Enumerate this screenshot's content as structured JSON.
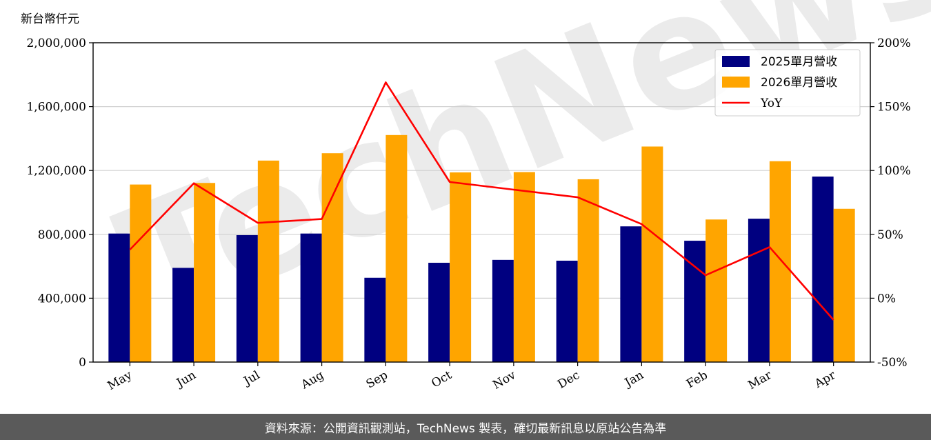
{
  "chart_data": {
    "type": "bar",
    "y_unit_label": "新台幣仟元",
    "categories": [
      "May",
      "Jun",
      "Jul",
      "Aug",
      "Sep",
      "Oct",
      "Nov",
      "Dec",
      "Jan",
      "Feb",
      "Mar",
      "Apr"
    ],
    "series": [
      {
        "name": "2025單月營收",
        "type": "bar",
        "color": "#000080",
        "axis": "left",
        "values": [
          805000,
          590000,
          795000,
          805000,
          528000,
          622000,
          640000,
          635000,
          850000,
          760000,
          898000,
          1162000
        ]
      },
      {
        "name": "2026單月營收",
        "type": "bar",
        "color": "#ffa500",
        "axis": "left",
        "values": [
          1112000,
          1122000,
          1262000,
          1308000,
          1422000,
          1188000,
          1190000,
          1145000,
          1350000,
          893000,
          1258000,
          960000
        ]
      },
      {
        "name": "YoY",
        "type": "line",
        "color": "#ff0000",
        "axis": "right",
        "values": [
          38,
          90,
          59,
          62,
          169,
          91,
          85,
          79,
          58,
          18,
          40,
          -17
        ]
      }
    ],
    "left_axis": {
      "ylim": [
        0,
        2000000
      ],
      "ticks": [
        0,
        400000,
        800000,
        1200000,
        1600000,
        2000000
      ],
      "tick_labels": [
        "0",
        "400,000",
        "800,000",
        "1,200,000",
        "1,600,000",
        "2,000,000"
      ]
    },
    "right_axis": {
      "ylim": [
        -50,
        200
      ],
      "ticks": [
        -50,
        0,
        50,
        100,
        150,
        200
      ],
      "tick_labels": [
        "-50%",
        "0%",
        "50%",
        "100%",
        "150%",
        "200%"
      ]
    },
    "grid": "horizontal",
    "legend_position": "top-right"
  },
  "watermark": "TechNews",
  "footer": {
    "text": "資料來源：公開資訊觀測站，TechNews 製表，確切最新訊息以原站公告為準"
  }
}
